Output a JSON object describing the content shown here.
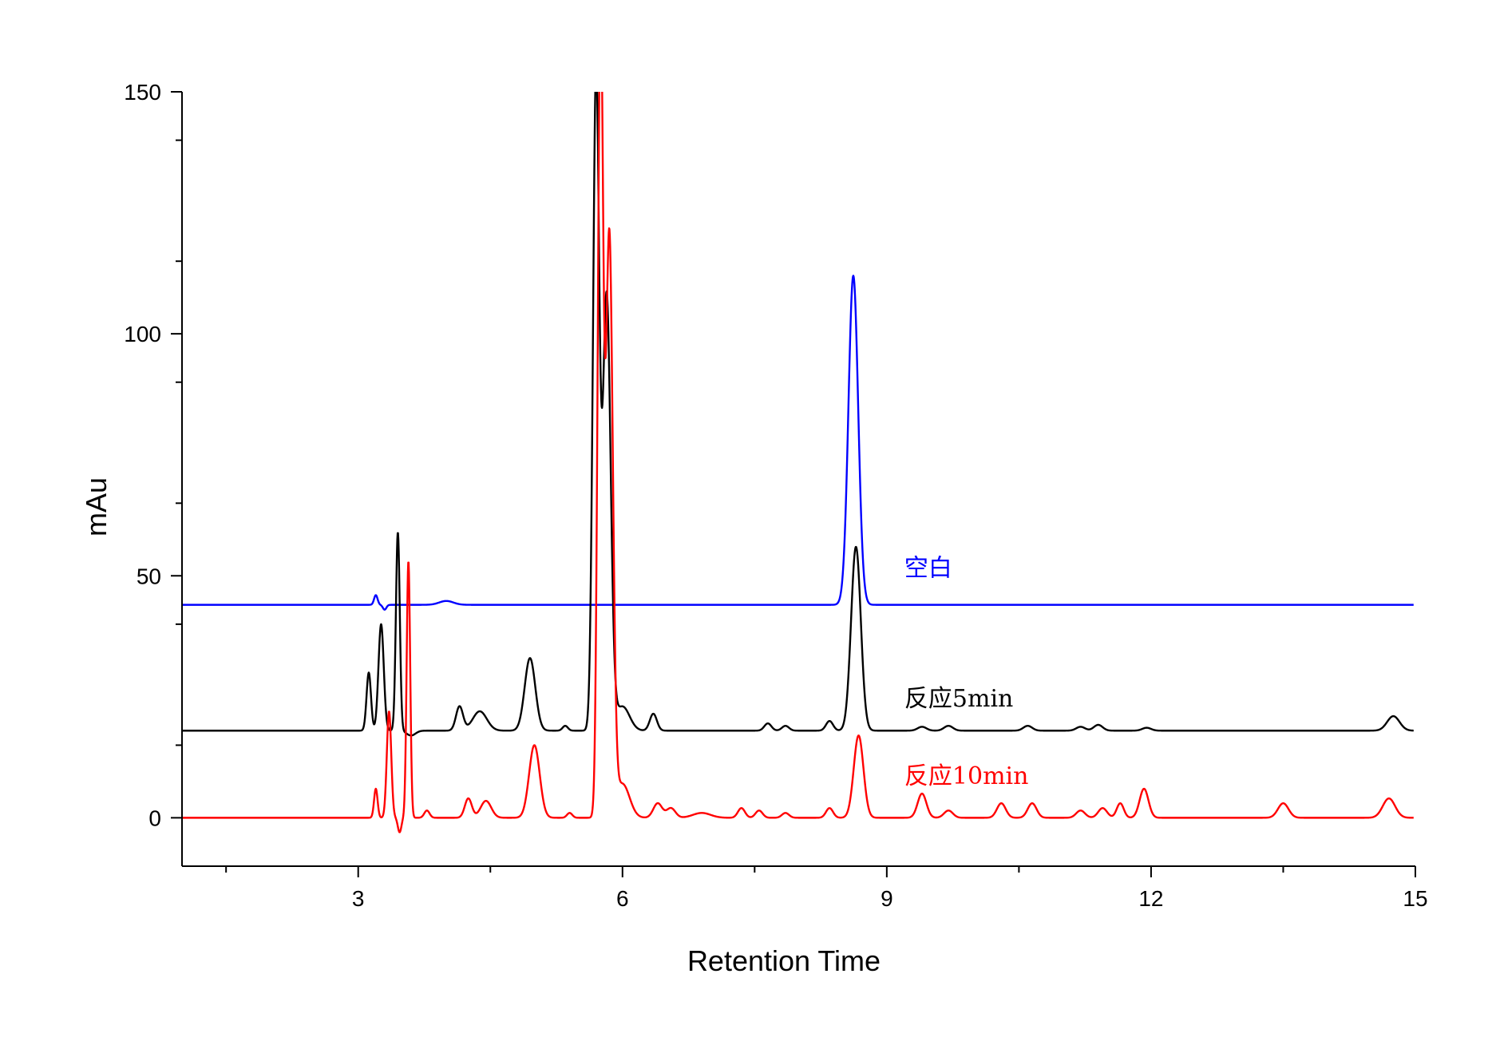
{
  "chart_data": {
    "type": "line",
    "title": "",
    "xlabel": "Retention Time",
    "ylabel": "mAu",
    "xlim": [
      1,
      15
    ],
    "ylim": [
      -10,
      150
    ],
    "x_ticks": [
      3,
      6,
      9,
      12,
      15
    ],
    "x_minor_ticks": [
      1.5,
      4.5,
      7.5,
      10.5,
      13.5
    ],
    "y_ticks": [
      0,
      50,
      100,
      150
    ],
    "grid": false,
    "legend": "none",
    "series": [
      {
        "name": "空白",
        "color": "#0000ff",
        "baseline": 44,
        "label_at": [
          9.2,
          50
        ],
        "peaks": [
          [
            3.2,
            2,
            0.02
          ],
          [
            3.3,
            -1,
            0.02
          ],
          [
            4.0,
            0.8,
            0.08
          ],
          [
            8.62,
            68,
            0.055
          ]
        ]
      },
      {
        "name": "反应5min",
        "color": "#000000",
        "baseline": 18,
        "label_at": [
          9.2,
          23
        ],
        "peaks": [
          [
            3.12,
            12,
            0.025
          ],
          [
            3.26,
            22,
            0.03
          ],
          [
            3.45,
            41,
            0.022
          ],
          [
            3.6,
            -1,
            0.05
          ],
          [
            4.15,
            5,
            0.04
          ],
          [
            4.38,
            4,
            0.08
          ],
          [
            4.95,
            15,
            0.06
          ],
          [
            5.35,
            1,
            0.03
          ],
          [
            5.7,
            135,
            0.035
          ],
          [
            5.82,
            90,
            0.045
          ],
          [
            6.0,
            5,
            0.08
          ],
          [
            6.35,
            3.5,
            0.04
          ],
          [
            7.65,
            1.5,
            0.04
          ],
          [
            7.85,
            1,
            0.04
          ],
          [
            8.35,
            2,
            0.04
          ],
          [
            8.65,
            38,
            0.055
          ],
          [
            9.4,
            0.8,
            0.05
          ],
          [
            9.7,
            1,
            0.05
          ],
          [
            10.6,
            1,
            0.05
          ],
          [
            11.2,
            0.8,
            0.05
          ],
          [
            11.4,
            1.2,
            0.05
          ],
          [
            11.95,
            0.6,
            0.05
          ],
          [
            14.75,
            3,
            0.07
          ]
        ]
      },
      {
        "name": "反应10min",
        "color": "#ff0000",
        "baseline": 0,
        "label_at": [
          9.2,
          7
        ],
        "peaks": [
          [
            3.2,
            6,
            0.02
          ],
          [
            3.35,
            22,
            0.025
          ],
          [
            3.47,
            -3,
            0.02
          ],
          [
            3.57,
            53,
            0.02
          ],
          [
            3.78,
            1.5,
            0.03
          ],
          [
            4.25,
            4,
            0.04
          ],
          [
            4.45,
            3.5,
            0.06
          ],
          [
            5.0,
            15,
            0.06
          ],
          [
            5.4,
            1,
            0.03
          ],
          [
            5.75,
            165,
            0.03
          ],
          [
            5.85,
            120,
            0.04
          ],
          [
            6.0,
            7,
            0.08
          ],
          [
            6.4,
            3,
            0.05
          ],
          [
            6.55,
            2,
            0.05
          ],
          [
            6.9,
            1,
            0.1
          ],
          [
            7.35,
            2,
            0.04
          ],
          [
            7.55,
            1.5,
            0.04
          ],
          [
            7.85,
            1,
            0.04
          ],
          [
            8.35,
            2,
            0.04
          ],
          [
            8.68,
            17,
            0.055
          ],
          [
            9.4,
            5,
            0.05
          ],
          [
            9.7,
            1.5,
            0.05
          ],
          [
            10.3,
            3,
            0.05
          ],
          [
            10.65,
            3,
            0.05
          ],
          [
            11.2,
            1.5,
            0.05
          ],
          [
            11.45,
            2,
            0.05
          ],
          [
            11.65,
            3,
            0.04
          ],
          [
            11.92,
            6,
            0.05
          ],
          [
            13.5,
            3,
            0.06
          ],
          [
            14.7,
            4,
            0.07
          ]
        ]
      }
    ]
  }
}
